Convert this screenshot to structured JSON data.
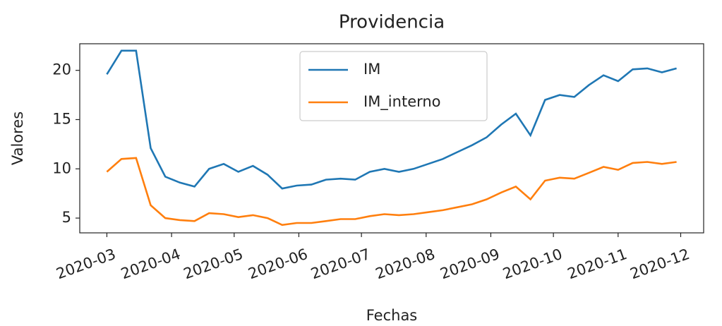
{
  "chart_data": {
    "type": "line",
    "title": "Providencia",
    "x_label": "Fechas",
    "y_label": "Valores",
    "x": [
      "2020-03-01",
      "2020-03-08",
      "2020-03-15",
      "2020-03-22",
      "2020-03-29",
      "2020-04-05",
      "2020-04-12",
      "2020-04-19",
      "2020-04-26",
      "2020-05-03",
      "2020-05-10",
      "2020-05-17",
      "2020-05-24",
      "2020-05-31",
      "2020-06-07",
      "2020-06-14",
      "2020-06-21",
      "2020-06-28",
      "2020-07-05",
      "2020-07-12",
      "2020-07-19",
      "2020-07-26",
      "2020-08-02",
      "2020-08-09",
      "2020-08-16",
      "2020-08-23",
      "2020-08-30",
      "2020-09-06",
      "2020-09-13",
      "2020-09-20",
      "2020-09-27",
      "2020-10-04",
      "2020-10-11",
      "2020-10-18",
      "2020-10-25",
      "2020-11-01",
      "2020-11-08",
      "2020-11-15",
      "2020-11-22",
      "2020-11-29"
    ],
    "series": [
      {
        "name": "IM",
        "color": "#1f77b4",
        "values": [
          19.6,
          22.0,
          22.0,
          12.1,
          9.2,
          8.6,
          8.2,
          10.0,
          10.5,
          9.7,
          10.3,
          9.4,
          8.0,
          8.3,
          8.4,
          8.9,
          9.0,
          8.9,
          9.7,
          10.0,
          9.7,
          10.0,
          10.5,
          11.0,
          11.7,
          12.4,
          13.2,
          14.5,
          15.6,
          13.4,
          17.0,
          17.5,
          17.3,
          18.5,
          19.5,
          18.9,
          20.1,
          20.2,
          19.8,
          20.2
        ]
      },
      {
        "name": "IM_interno",
        "color": "#ff7f0e",
        "values": [
          9.7,
          11.0,
          11.1,
          6.3,
          5.0,
          4.8,
          4.7,
          5.5,
          5.4,
          5.1,
          5.3,
          5.0,
          4.3,
          4.5,
          4.5,
          4.7,
          4.9,
          4.9,
          5.2,
          5.4,
          5.3,
          5.4,
          5.6,
          5.8,
          6.1,
          6.4,
          6.9,
          7.6,
          8.2,
          6.9,
          8.8,
          9.1,
          9.0,
          9.6,
          10.2,
          9.9,
          10.6,
          10.7,
          10.5,
          10.7
        ]
      }
    ],
    "xlim": [
      "2020-02-17",
      "2020-12-12"
    ],
    "xticks": [
      {
        "value": "2020-03-01",
        "label": "2020-03"
      },
      {
        "value": "2020-04-01",
        "label": "2020-04"
      },
      {
        "value": "2020-05-01",
        "label": "2020-05"
      },
      {
        "value": "2020-06-01",
        "label": "2020-06"
      },
      {
        "value": "2020-07-01",
        "label": "2020-07"
      },
      {
        "value": "2020-08-01",
        "label": "2020-08"
      },
      {
        "value": "2020-09-01",
        "label": "2020-09"
      },
      {
        "value": "2020-10-01",
        "label": "2020-10"
      },
      {
        "value": "2020-11-01",
        "label": "2020-11"
      },
      {
        "value": "2020-12-01",
        "label": "2020-12"
      }
    ],
    "ylim": [
      3.5,
      22.7
    ],
    "yticks": [
      5,
      10,
      15,
      20
    ],
    "grid": false,
    "legend": "upper center"
  }
}
